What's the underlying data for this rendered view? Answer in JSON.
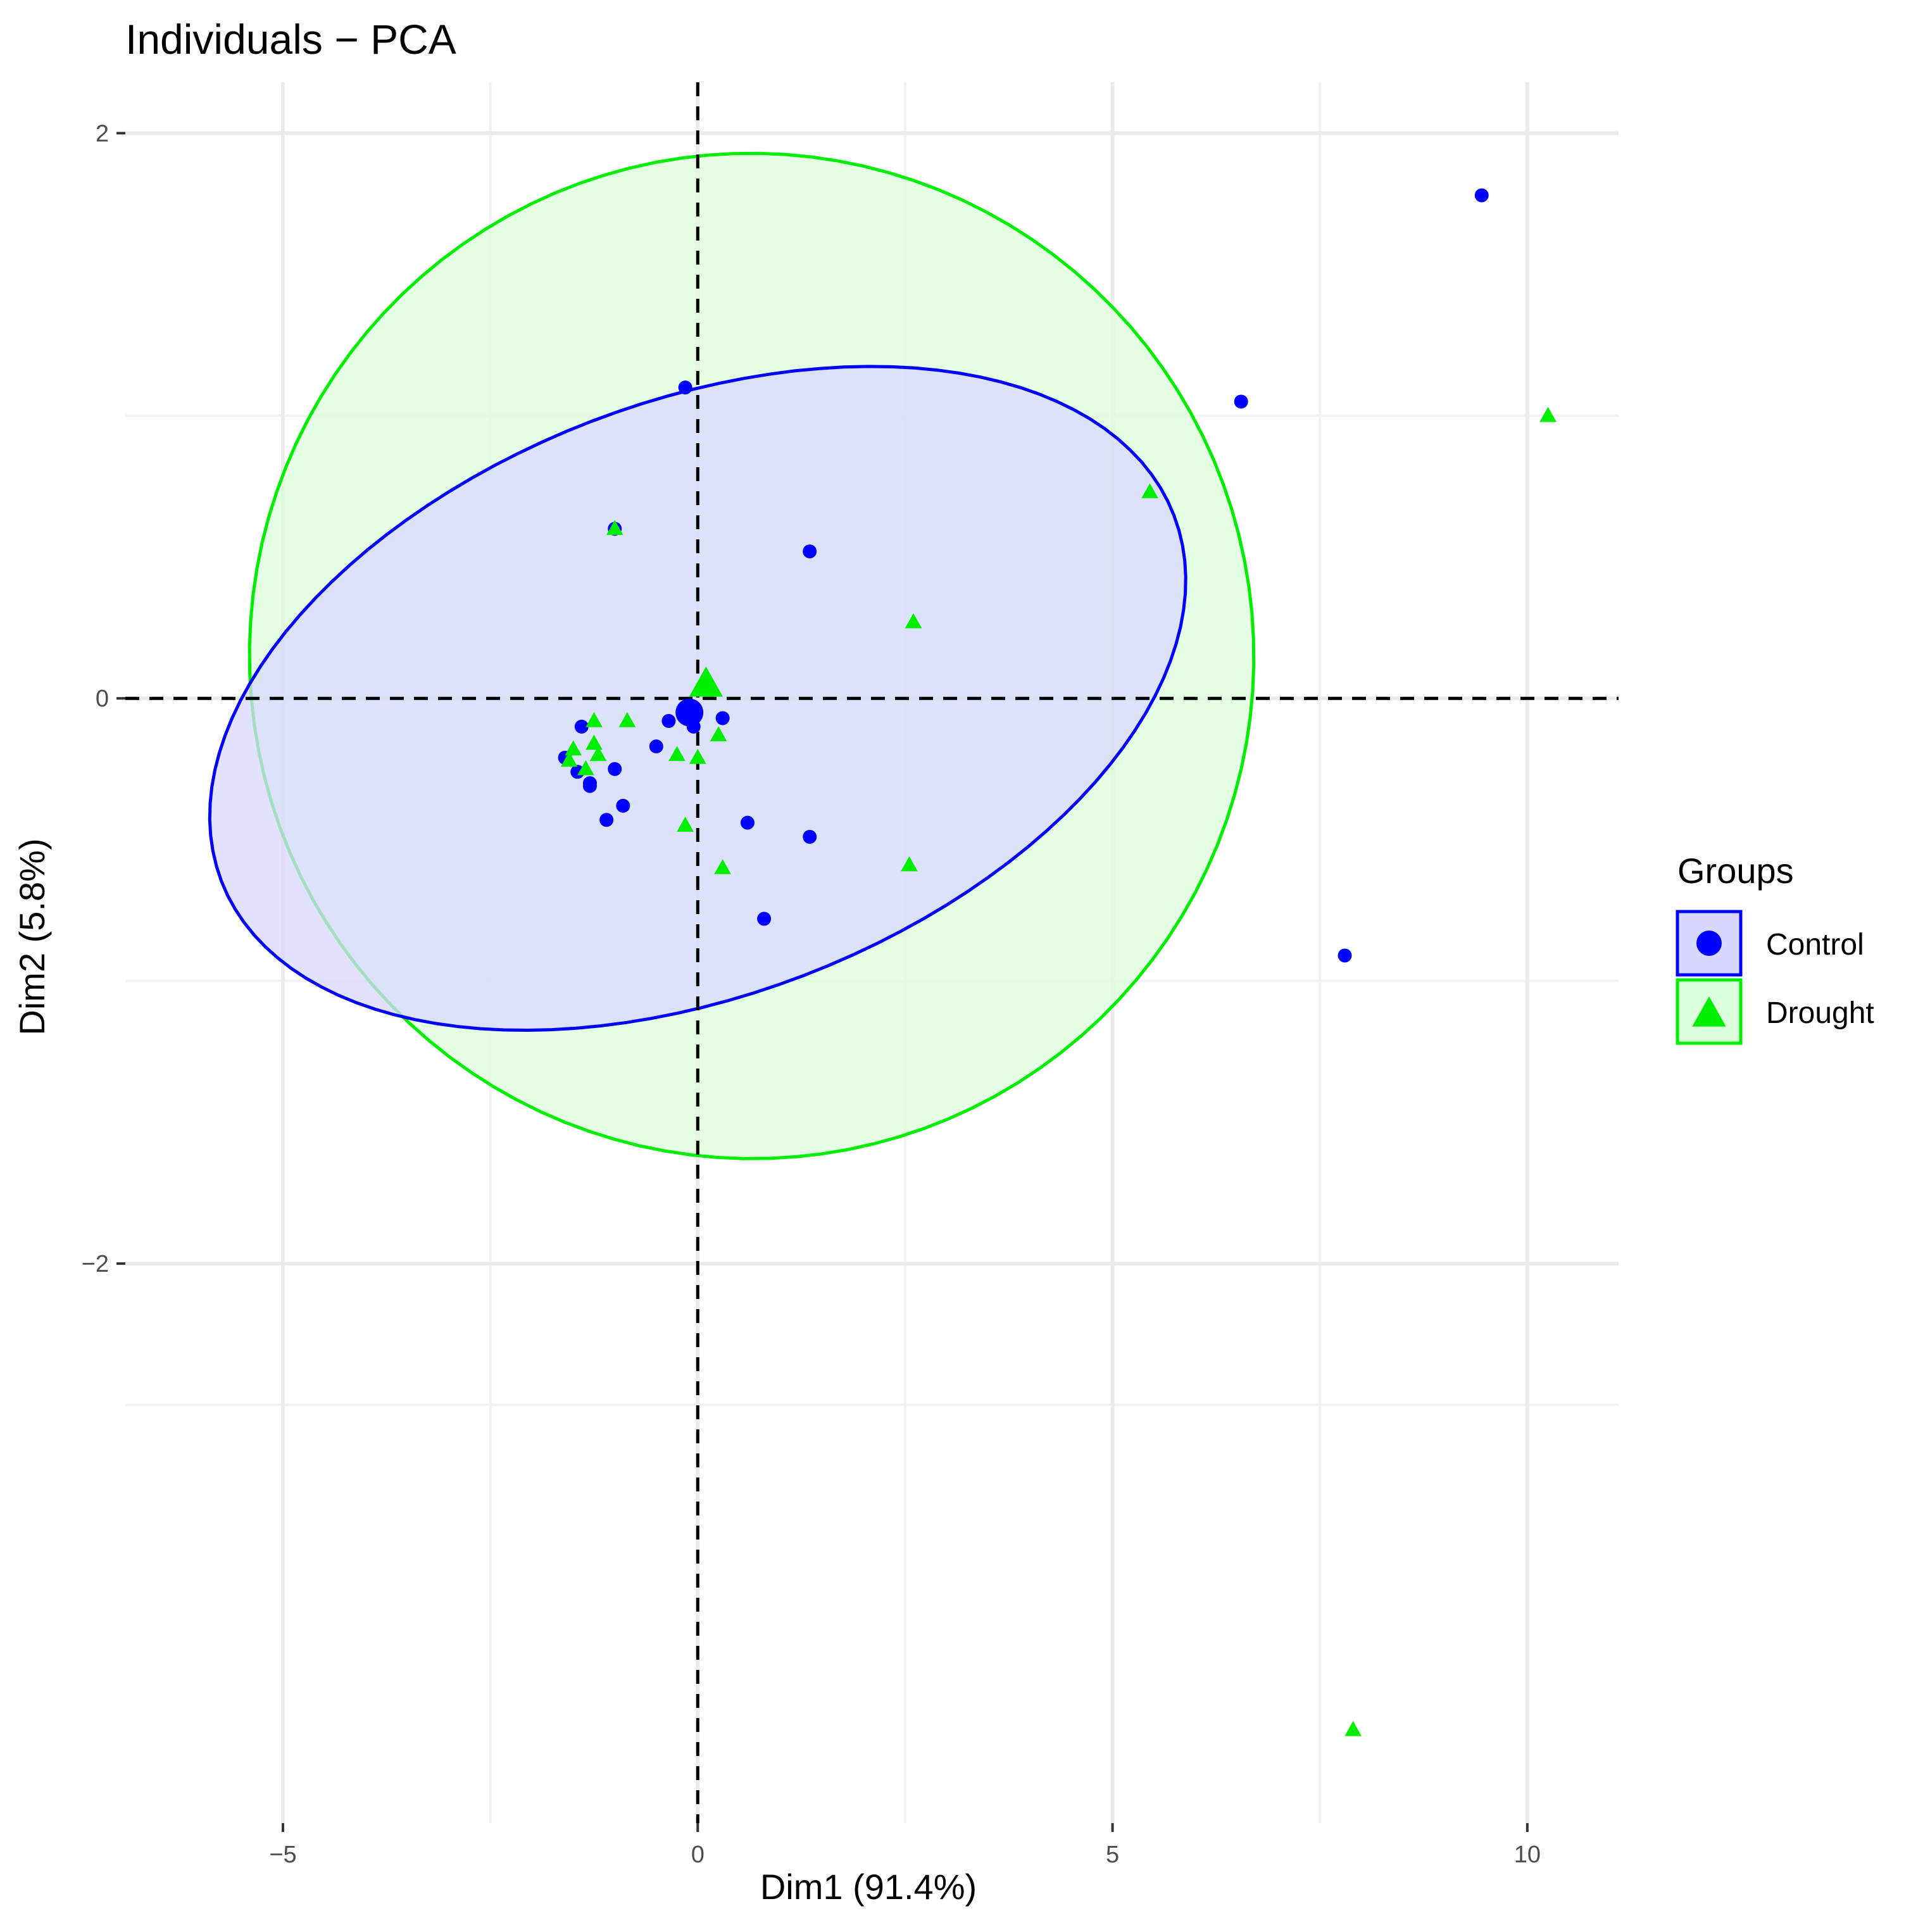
{
  "chart_data": {
    "type": "scatter",
    "title": "Individuals − PCA",
    "xlabel": "Dim1 (91.4%)",
    "ylabel": "Dim2 (5.8%)",
    "xlim": [
      -6.9,
      11.1
    ],
    "ylim": [
      -3.98,
      2.18
    ],
    "x_ticks": [
      -5,
      0,
      5,
      10
    ],
    "x_tick_labels": [
      "−5",
      "0",
      "5",
      "10"
    ],
    "y_ticks": [
      -2,
      0,
      2
    ],
    "y_tick_labels": [
      "−2",
      "0",
      "2"
    ],
    "grid": true,
    "reference_lines": {
      "x": 0,
      "y": 0,
      "style": "dashed"
    },
    "legend": {
      "title": "Groups",
      "position": "right"
    },
    "series": [
      {
        "name": "Control",
        "marker": "circle",
        "color": "#0000ff",
        "fill": "#d8d8ff",
        "points": [
          [
            9.45,
            1.78
          ],
          [
            6.55,
            1.05
          ],
          [
            7.8,
            -0.91
          ],
          [
            1.35,
            0.52
          ],
          [
            -0.15,
            1.1
          ],
          [
            -1.0,
            0.6
          ],
          [
            -0.15,
            -0.06
          ],
          [
            -0.35,
            -0.08
          ],
          [
            0.3,
            -0.07
          ],
          [
            -0.5,
            -0.17
          ],
          [
            -1.4,
            -0.1
          ],
          [
            -1.6,
            -0.21
          ],
          [
            -1.45,
            -0.26
          ],
          [
            -1.3,
            -0.3
          ],
          [
            -1.0,
            -0.25
          ],
          [
            -0.9,
            -0.38
          ],
          [
            -1.1,
            -0.43
          ],
          [
            0.6,
            -0.44
          ],
          [
            1.35,
            -0.49
          ],
          [
            0.8,
            -0.78
          ],
          [
            -0.05,
            -0.1
          ],
          [
            -1.3,
            -0.31
          ]
        ],
        "centroid": [
          -0.1,
          -0.05
        ],
        "ellipse": {
          "center": [
            0.0,
            0.0
          ],
          "rx": 6.15,
          "ry": 1.05,
          "angle_deg": -21
        }
      },
      {
        "name": "Drought",
        "marker": "triangle",
        "color": "#00ee00",
        "fill": "#dcffdc",
        "points": [
          [
            10.25,
            1.0
          ],
          [
            5.45,
            0.73
          ],
          [
            2.6,
            0.27
          ],
          [
            -1.0,
            0.6
          ],
          [
            7.9,
            -3.65
          ],
          [
            -0.85,
            -0.08
          ],
          [
            -1.25,
            -0.08
          ],
          [
            -1.5,
            -0.18
          ],
          [
            -1.25,
            -0.16
          ],
          [
            -1.2,
            -0.2
          ],
          [
            -1.55,
            -0.22
          ],
          [
            -1.35,
            -0.25
          ],
          [
            -0.25,
            -0.2
          ],
          [
            0.0,
            -0.21
          ],
          [
            0.25,
            -0.13
          ],
          [
            -0.15,
            -0.45
          ],
          [
            0.3,
            -0.6
          ],
          [
            2.55,
            -0.59
          ],
          [
            0.15,
            0.03
          ]
        ],
        "centroid": [
          0.1,
          0.05
        ],
        "ellipse": {
          "center": [
            0.65,
            0.15
          ],
          "rx": 6.05,
          "ry": 1.78,
          "angle_deg": -32
        }
      }
    ]
  }
}
